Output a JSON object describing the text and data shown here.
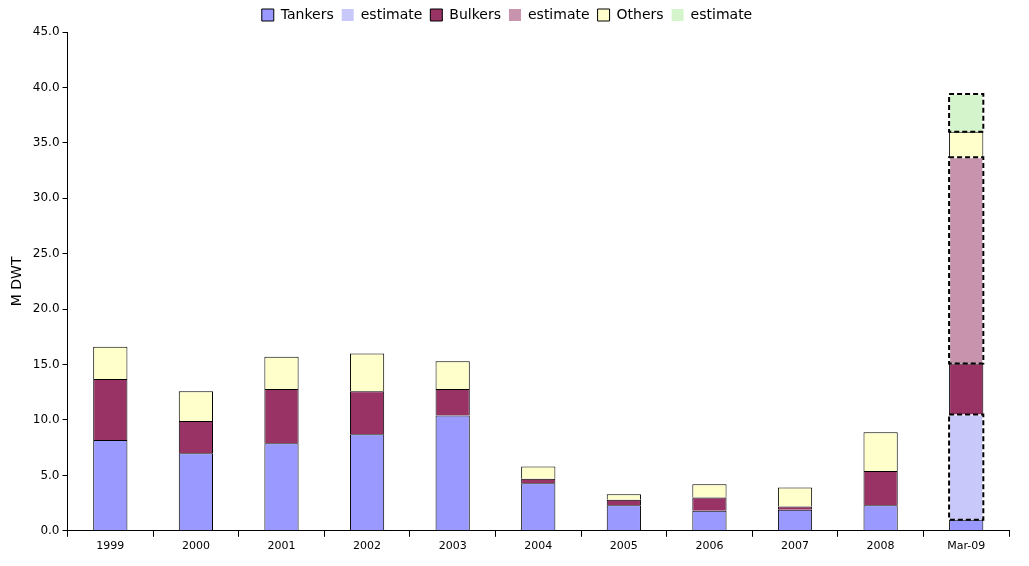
{
  "chart_data": {
    "type": "bar",
    "stacked": true,
    "ylabel": "M DWT",
    "legend": "top",
    "grid": false,
    "categories": [
      "1999",
      "2000",
      "2001",
      "2002",
      "2003",
      "2004",
      "2005",
      "2006",
      "2007",
      "2008",
      "Mar-09"
    ],
    "series": [
      {
        "name": "Tankers",
        "color": "#9999ff",
        "values": [
          8.2,
          7.0,
          7.9,
          8.7,
          10.4,
          4.3,
          2.3,
          1.8,
          1.9,
          2.3,
          1.0
        ]
      },
      {
        "name": "estimate",
        "color": "#c8c8fb",
        "line_style": "dashed",
        "values": [
          null,
          null,
          null,
          null,
          null,
          null,
          null,
          null,
          null,
          null,
          9.5
        ]
      },
      {
        "name": "Bulkers",
        "color": "#993366",
        "values": [
          5.5,
          2.9,
          4.9,
          3.9,
          2.4,
          0.4,
          0.5,
          1.2,
          0.3,
          3.1,
          4.6
        ]
      },
      {
        "name": "estimate",
        "color": "#c893ad",
        "line_style": "dashed",
        "values": [
          null,
          null,
          null,
          null,
          null,
          null,
          null,
          null,
          null,
          null,
          18.6
        ]
      },
      {
        "name": "Others",
        "color": "#ffffcc",
        "values": [
          2.9,
          2.7,
          2.9,
          3.4,
          2.5,
          1.1,
          0.5,
          1.2,
          1.7,
          3.5,
          2.3
        ]
      },
      {
        "name": "estimate",
        "color": "#d4f5cc",
        "line_style": "dashed",
        "values": [
          null,
          null,
          null,
          null,
          null,
          null,
          null,
          null,
          null,
          null,
          3.4
        ]
      }
    ],
    "ylim": [
      0,
      45
    ],
    "yticks": [
      {
        "value": 0,
        "label": "0.0"
      },
      {
        "value": 5,
        "label": "5.0"
      },
      {
        "value": 10,
        "label": "10.0"
      },
      {
        "value": 15,
        "label": "15.0"
      },
      {
        "value": 20,
        "label": "20.0"
      },
      {
        "value": 25,
        "label": "25.0"
      },
      {
        "value": 30,
        "label": "30.0"
      },
      {
        "value": 35,
        "label": "35.0"
      },
      {
        "value": 40,
        "label": "40.0"
      },
      {
        "value": 45,
        "label": "45.0"
      }
    ]
  }
}
